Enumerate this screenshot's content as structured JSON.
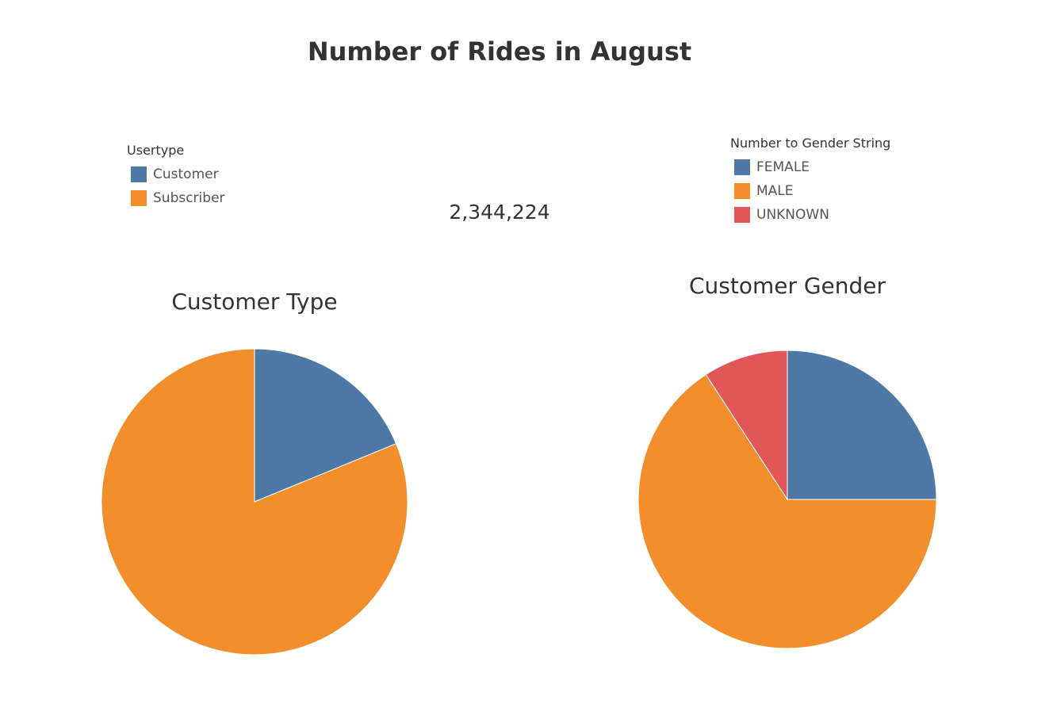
{
  "dashboard": {
    "title": "Number of Rides in August",
    "total_rides": "2,344,224"
  },
  "legends": {
    "usertype": {
      "title": "Usertype",
      "items": [
        {
          "label": "Customer",
          "color": "#4e79a7"
        },
        {
          "label": "Subscriber",
          "color": "#f28e2b"
        }
      ]
    },
    "gender": {
      "title": "Number to Gender String",
      "items": [
        {
          "label": "FEMALE",
          "color": "#4e79a7"
        },
        {
          "label": "MALE",
          "color": "#f28e2b"
        },
        {
          "label": "UNKNOWN",
          "color": "#e15759"
        }
      ]
    }
  },
  "chart_data": [
    {
      "type": "pie",
      "title": "Customer Type",
      "slices": [
        {
          "label": "Customer",
          "share": 0.188,
          "color": "#4e79a7"
        },
        {
          "label": "Subscriber",
          "share": 0.812,
          "color": "#f28e2b"
        }
      ]
    },
    {
      "type": "pie",
      "title": "Customer Gender",
      "slices": [
        {
          "label": "FEMALE",
          "share": 0.25,
          "color": "#4e79a7"
        },
        {
          "label": "MALE",
          "share": 0.658,
          "color": "#f28e2b"
        },
        {
          "label": "UNKNOWN",
          "share": 0.092,
          "color": "#e15759"
        }
      ]
    }
  ]
}
